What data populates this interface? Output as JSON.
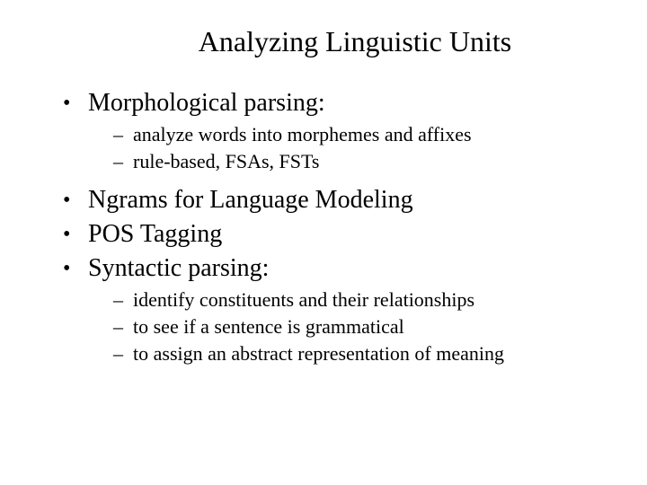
{
  "colors": {
    "background": "#ffffff",
    "text": "#000000"
  },
  "typography": {
    "font_family": "Times New Roman, serif",
    "title_fontsize": 32,
    "level1_fontsize": 28,
    "level2_fontsize": 22
  },
  "slide": {
    "title": "Analyzing Linguistic Units",
    "items": [
      {
        "text": "Morphological parsing:",
        "subitems": [
          "analyze words into morphemes and affixes",
          "rule-based, FSAs, FSTs"
        ]
      },
      {
        "text": "Ngrams for Language Modeling",
        "subitems": []
      },
      {
        "text": "POS Tagging",
        "subitems": []
      },
      {
        "text": "Syntactic parsing:",
        "subitems": [
          "identify constituents and their relationships",
          "to see if a sentence is grammatical",
          "to assign an abstract representation of meaning"
        ]
      }
    ]
  }
}
